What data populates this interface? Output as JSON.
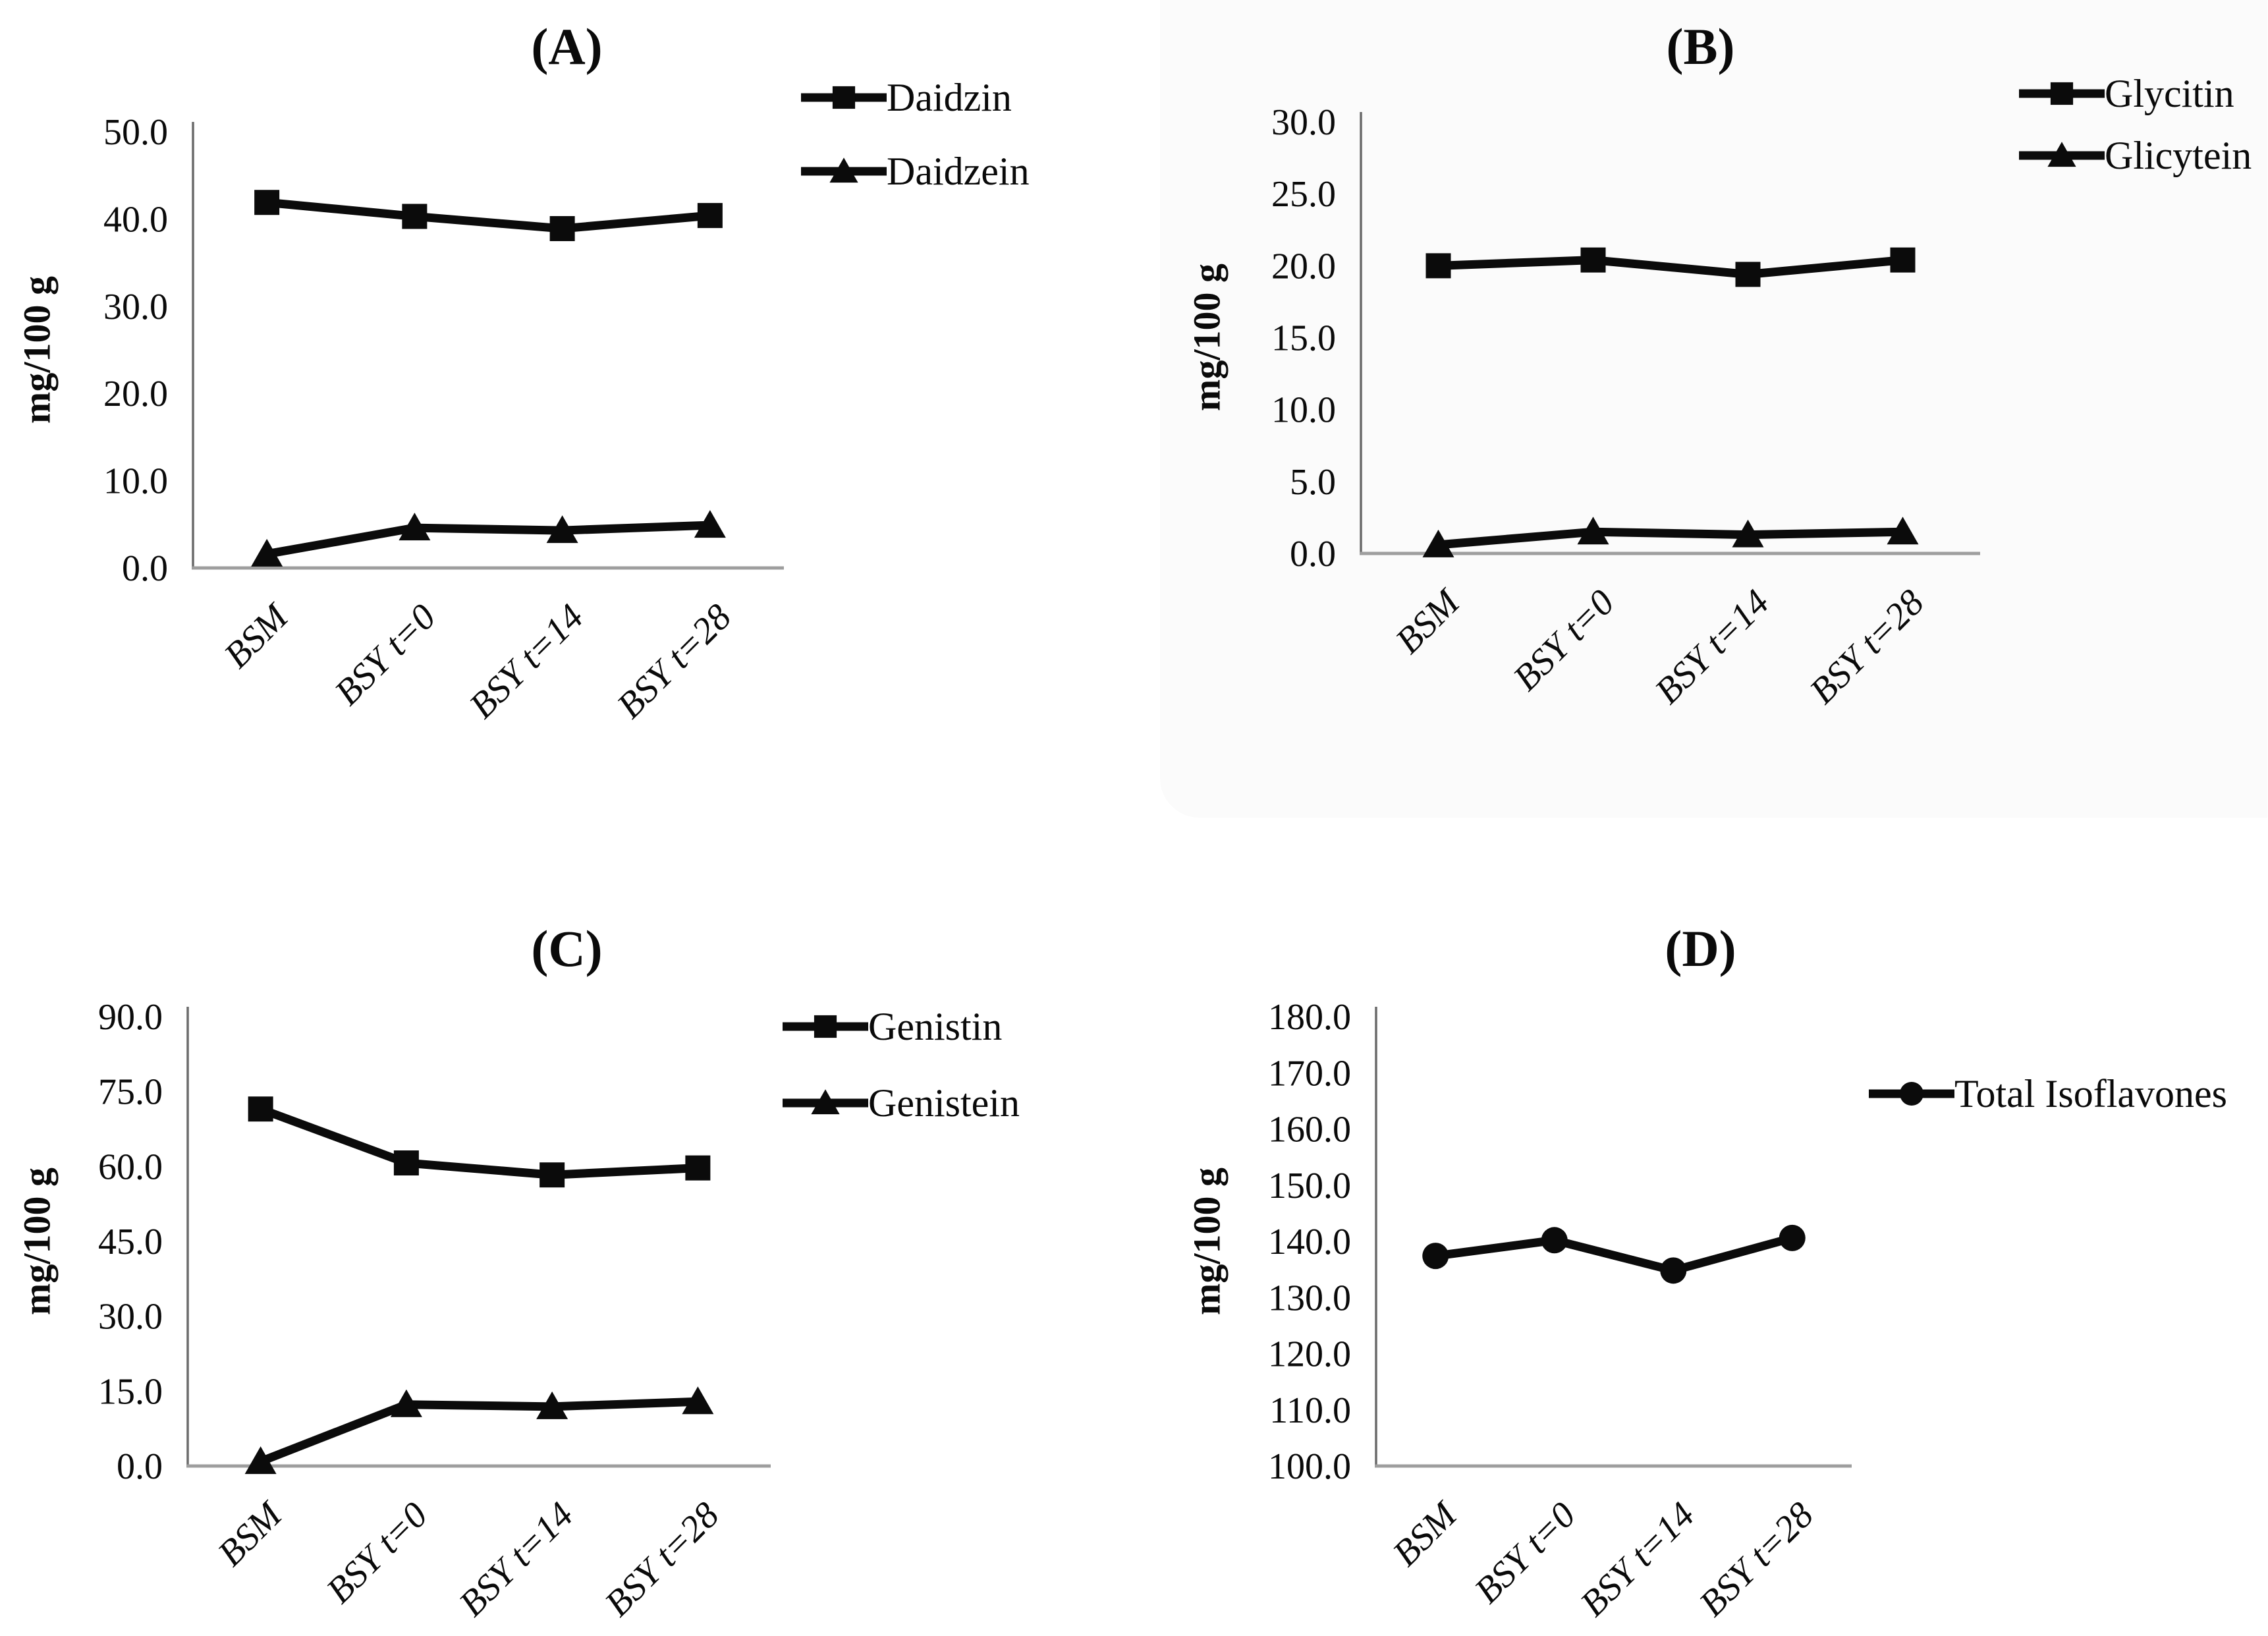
{
  "colors": {
    "series": "#0b0b0b",
    "x_axis": "#9e9e9e",
    "y_axis": "#6b6b6b",
    "text": "#0a0a0a"
  },
  "chart_data": [
    {
      "panel": "(A)",
      "type": "line",
      "title": "(A)",
      "ylabel": "mg/100 g",
      "xlabel": "",
      "categories": [
        "BSM",
        "BSY t=0",
        "BSY t=14",
        "BSY t=28"
      ],
      "series": [
        {
          "name": "Daidzin",
          "marker": "square",
          "values": [
            41.9,
            40.3,
            38.9,
            40.4
          ]
        },
        {
          "name": "Daidzein",
          "marker": "triangle",
          "values": [
            1.6,
            4.6,
            4.3,
            4.9
          ]
        }
      ],
      "ylim": [
        0,
        50
      ],
      "ystep": 10,
      "tick_format": "one-decimal",
      "grid": false,
      "legend_position": "right-top"
    },
    {
      "panel": "(B)",
      "type": "line",
      "title": "(B)",
      "ylabel": "mg/100 g",
      "xlabel": "",
      "categories": [
        "BSM",
        "BSY t=0",
        "BSY t=14",
        "BSY t=28"
      ],
      "series": [
        {
          "name": "Glycitin",
          "marker": "square",
          "values": [
            20.0,
            20.4,
            19.4,
            20.4
          ]
        },
        {
          "name": "Glicytein",
          "marker": "triangle",
          "values": [
            0.6,
            1.5,
            1.3,
            1.5
          ]
        }
      ],
      "ylim": [
        0,
        30
      ],
      "ystep": 5,
      "tick_format": "one-decimal",
      "grid": false,
      "legend_position": "right-top"
    },
    {
      "panel": "(C)",
      "type": "line",
      "title": "(C)",
      "ylabel": "mg/100 g",
      "xlabel": "",
      "categories": [
        "BSM",
        "BSY t=0",
        "BSY t=14",
        "BSY t=28"
      ],
      "series": [
        {
          "name": "Genistin",
          "marker": "square",
          "values": [
            71.5,
            60.7,
            58.3,
            59.7
          ]
        },
        {
          "name": "Genistein",
          "marker": "triangle",
          "values": [
            0.9,
            12.3,
            11.9,
            12.9
          ]
        }
      ],
      "ylim": [
        0,
        90
      ],
      "ystep": 15,
      "tick_format": "one-decimal",
      "grid": false,
      "legend_position": "right-top"
    },
    {
      "panel": "(D)",
      "type": "line",
      "title": "(D)",
      "ylabel": "mg/100 g",
      "xlabel": "",
      "categories": [
        "BSM",
        "BSY t=0",
        "BSY t=14",
        "BSY t=28"
      ],
      "series": [
        {
          "name": "Total Isoflavones",
          "marker": "circle",
          "values": [
            137.4,
            140.2,
            134.8,
            140.6
          ]
        }
      ],
      "ylim": [
        100,
        180
      ],
      "ystep": 10,
      "tick_format": "one-decimal",
      "grid": false,
      "legend_position": "right-top"
    }
  ]
}
